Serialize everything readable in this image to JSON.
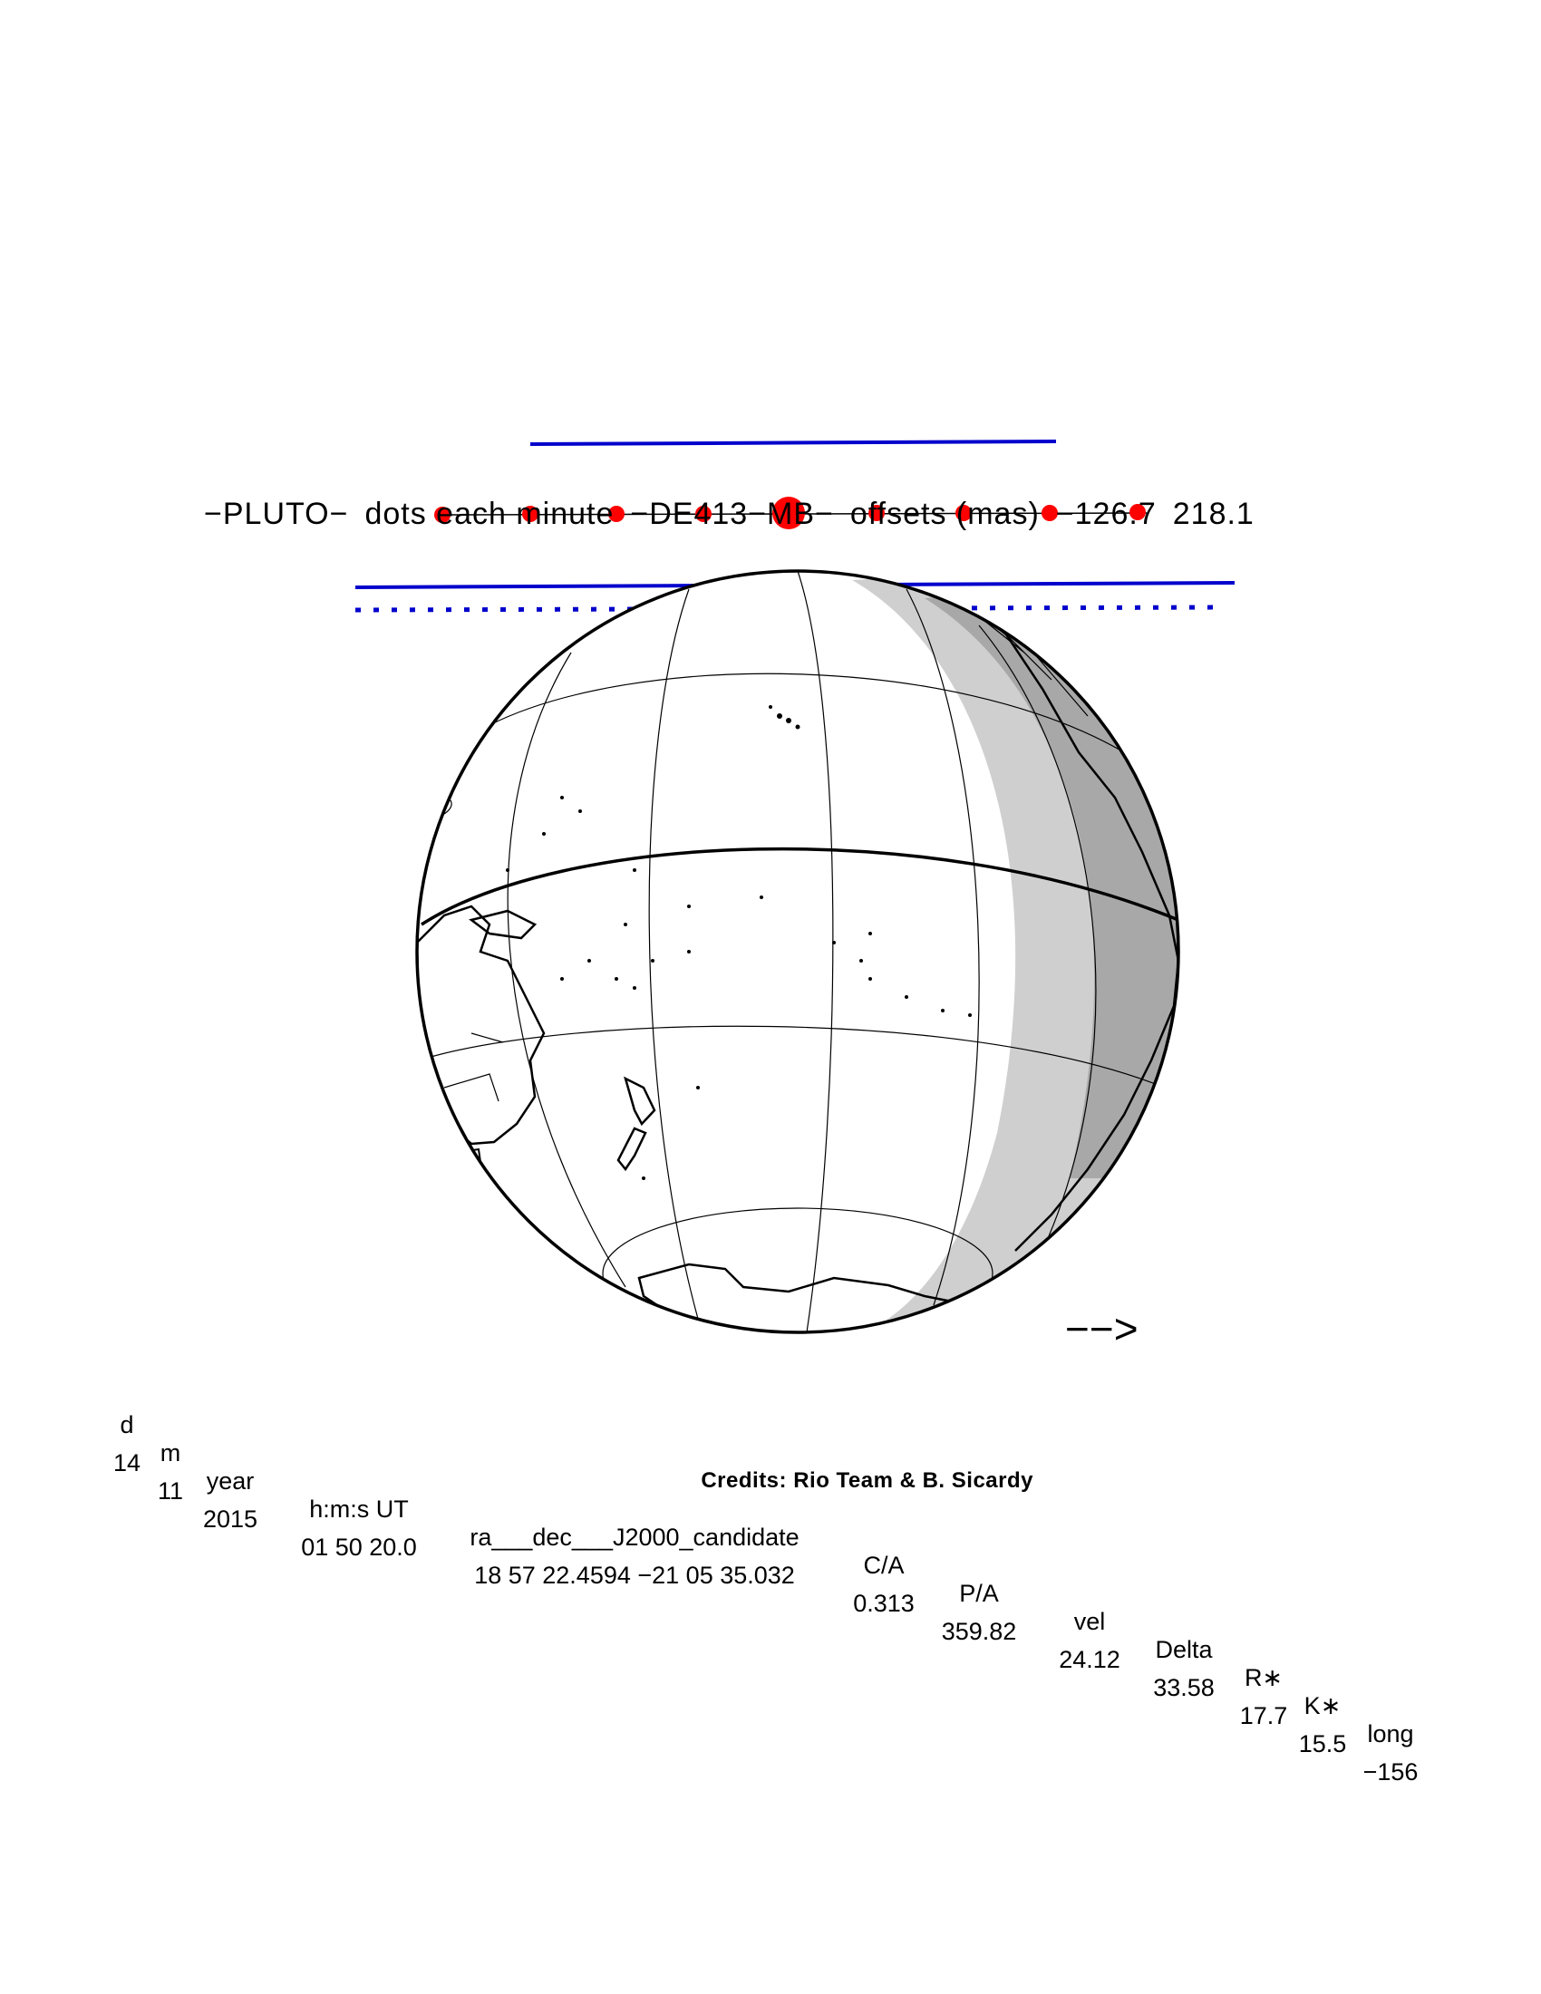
{
  "title": {
    "object": "−PLUTO−",
    "dots_text": "dots each minute",
    "ephem": "−DE413−MB−",
    "offsets_text": "offsets (mas)",
    "offset_ra": "−126.7",
    "offset_dec": "218.1"
  },
  "table": {
    "headers": [
      "d",
      "m",
      "year",
      "h:m:s UT",
      "ra___dec___J2000_candidate",
      "C/A",
      "P/A",
      "vel",
      "Delta",
      "R∗",
      "K∗",
      "long"
    ],
    "values": [
      "14",
      "11",
      "2015",
      "01 50 20.0",
      "18 57 22.4594 −21 05 35.032",
      "0.313",
      "359.82",
      "24.12",
      "33.58",
      "17.7",
      "15.5",
      "−156"
    ]
  },
  "credits": "Credits: Rio Team & B. Sicardy",
  "direction_arrow": "−−>",
  "colors": {
    "shadow_path": "#0000cc",
    "minute_dots": "#ff0000",
    "twilight_light": "#cfcfcf",
    "twilight_dark": "#a8a8a8",
    "coastline": "#000000"
  }
}
